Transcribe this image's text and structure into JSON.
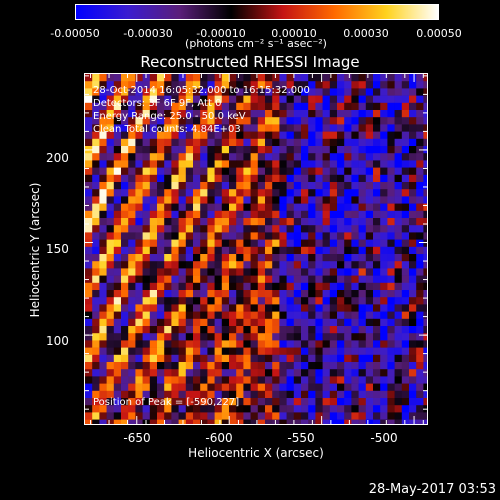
{
  "chart_data": {
    "type": "heatmap",
    "title": "Reconstructed RHESSI Image",
    "xlabel": "Heliocentric X (arcsec)",
    "ylabel": "Heliocentric Y (arcsec)",
    "xlim": [
      -678,
      -493
    ],
    "ylim": [
      52,
      241
    ],
    "x_ticks": [
      "-650",
      "-600",
      "-550",
      "-500"
    ],
    "x_tick_values": [
      -650,
      -600,
      -550,
      -500
    ],
    "y_ticks": [
      "100",
      "150",
      "200"
    ],
    "y_tick_values": [
      100,
      150,
      200
    ],
    "colorbar": {
      "ticks": [
        "-0.00050",
        "-0.00030",
        "-0.00010",
        "0.00010",
        "0.00030",
        "0.00050"
      ],
      "tick_values": [
        -0.0005,
        -0.0003,
        -0.0001,
        0.0001,
        0.0003,
        0.0005
      ],
      "range": [
        -0.0005,
        0.0005
      ],
      "unit": "(photons cm⁻² s⁻¹ asec⁻²)",
      "colormap": "blue-purple-red-orange-yellow-white"
    },
    "annotations": {
      "time": "28-Oct-2014 16:05:32.000 to 16:15:32.000",
      "detectors": "Detectors: 3F 6F 9F, Att 0",
      "energy": "Energy Range: 25.0 - 50.0 keV",
      "clean": "Clean    Total counts: 4.84E+03",
      "peak": "Position of Peak = [-590,227]"
    },
    "peak_position": [
      -590,
      227
    ],
    "grid": false
  },
  "footer_date": "28-May-2017 03:53",
  "colors": {
    "background": "#000000",
    "text": "#ffffff",
    "cmap": [
      "#0000ff",
      "#3a1cd0",
      "#5a1e7a",
      "#000000",
      "#c41414",
      "#ff6a00",
      "#ffd21e",
      "#ffffff"
    ]
  }
}
